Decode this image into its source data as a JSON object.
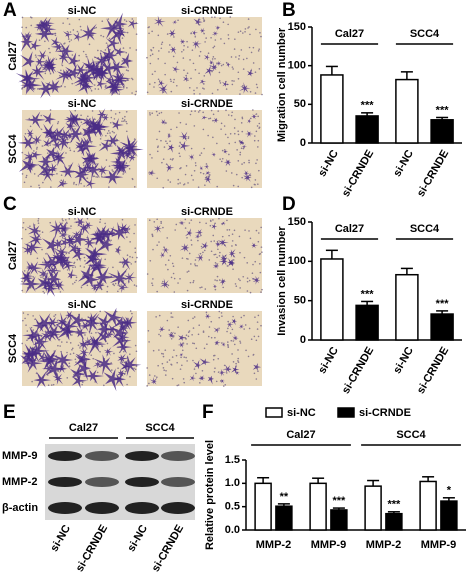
{
  "panel_labels": [
    "A",
    "B",
    "C",
    "D",
    "E",
    "F"
  ],
  "image_panels": [
    {
      "row_labels": [
        "Cal27",
        "SCC4"
      ],
      "column_labels": [
        [
          "si-NC",
          "si-CRNDE"
        ],
        [
          "si-NC",
          "si-CRNDE"
        ]
      ]
    },
    {
      "row_labels": [
        "Cal27",
        "SCC4"
      ],
      "column_labels": [
        [
          "si-NC",
          "si-CRNDE"
        ],
        [
          "si-NC",
          "si-CRNDE"
        ]
      ]
    }
  ],
  "blot": {
    "groups": [
      "Cal27",
      "SCC4"
    ],
    "proteins": [
      "MMP-9",
      "MMP-2",
      "β-actin"
    ],
    "lanes": [
      "si-NC",
      "si-CRNDE",
      "si-NC",
      "si-CRNDE"
    ]
  },
  "chart_data": [
    {
      "type": "bar",
      "ylabel": "Migration cell number",
      "groups": [
        "Cal27",
        "SCC4"
      ],
      "categories": [
        "si-NC",
        "si-CRNDE",
        "si-NC",
        "si-CRNDE"
      ],
      "values": [
        88,
        35,
        82,
        30
      ],
      "errors": [
        11,
        4,
        10,
        3
      ],
      "colors": [
        "#ffffff",
        "#000000",
        "#ffffff",
        "#000000"
      ],
      "significance": [
        "***",
        "***"
      ],
      "ylim": [
        0,
        150
      ],
      "yticks": [
        0,
        50,
        100,
        150
      ]
    },
    {
      "type": "bar",
      "ylabel": "Invasion cell number",
      "groups": [
        "Cal27",
        "SCC4"
      ],
      "categories": [
        "si-NC",
        "si-CRNDE",
        "si-NC",
        "si-CRNDE"
      ],
      "values": [
        103,
        44,
        83,
        33
      ],
      "errors": [
        11,
        5,
        8,
        4
      ],
      "colors": [
        "#ffffff",
        "#000000",
        "#ffffff",
        "#000000"
      ],
      "significance": [
        "***",
        "***"
      ],
      "ylim": [
        0,
        150
      ],
      "yticks": [
        0,
        50,
        100,
        150
      ]
    },
    {
      "type": "grouped-bar",
      "ylabel": "Relative protein level",
      "groups": [
        "Cal27",
        "SCC4"
      ],
      "categories": [
        "MMP-2",
        "MMP-9",
        "MMP-2",
        "MMP-9"
      ],
      "series": [
        {
          "name": "si-NC",
          "color": "#ffffff",
          "values": [
            1.0,
            1.0,
            0.94,
            1.04
          ],
          "errors": [
            0.12,
            0.11,
            0.12,
            0.1
          ]
        },
        {
          "name": "si-CRNDE",
          "color": "#000000",
          "values": [
            0.51,
            0.43,
            0.35,
            0.62
          ],
          "errors": [
            0.05,
            0.04,
            0.04,
            0.07
          ],
          "significance": [
            "**",
            "***",
            "***",
            "*"
          ]
        }
      ],
      "ylim": [
        0,
        1.5
      ],
      "yticks": [
        {
          "value": 0,
          "label": "0.0"
        },
        {
          "value": 0.5,
          "label": "0.5"
        },
        {
          "value": 1,
          "label": "1.0"
        },
        {
          "value": 1.5,
          "label": "1.5"
        }
      ]
    }
  ]
}
